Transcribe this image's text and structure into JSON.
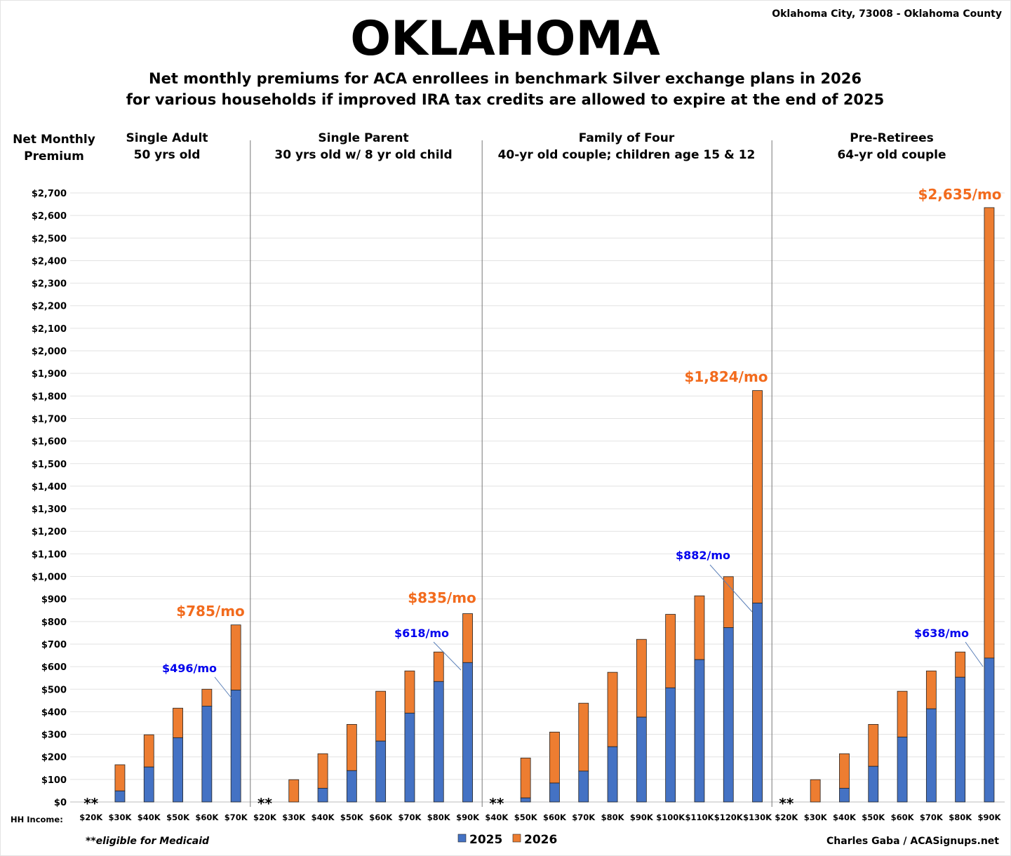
{
  "header": {
    "title": "OKLAHOMA",
    "location": "Oklahoma City, 73008 - Oklahoma County",
    "subtitle_line1": "Net monthly premiums for ACA enrollees in benchmark Silver exchange plans in 2026",
    "subtitle_line2": "for various households if improved IRA tax credits are allowed to expire at the end of 2025"
  },
  "footer": {
    "medicaid_note": "**eligible for Medicaid",
    "credit": "Charles Gaba / ACASignups.net"
  },
  "chart_data": {
    "type": "bar",
    "stacked": true,
    "ylabel_line1": "Net Monthly",
    "ylabel_line2": "Premium",
    "xlabel": "HH Income:",
    "ylim": [
      0,
      2700
    ],
    "ytick_step": 100,
    "grid": true,
    "legend_position": "bottom",
    "colors": {
      "2025": "#4472C4",
      "2026": "#ED7D31",
      "annotation_2025": "#0000EE",
      "annotation_2026": "#F26B1D"
    },
    "medicaid_marker": "**",
    "legend": [
      "2025",
      "2026"
    ],
    "panels": [
      {
        "title_line1": "Single Adult",
        "title_line2": "50 yrs old",
        "categories": [
          "$20K",
          "$30K",
          "$40K",
          "$50K",
          "$60K",
          "$70K"
        ],
        "values_2025": [
          null,
          49,
          155,
          285,
          425,
          496
        ],
        "values_2026": [
          null,
          165,
          298,
          416,
          500,
          785
        ],
        "annotation_2025": "$496/mo",
        "annotation_2026": "$785/mo"
      },
      {
        "title_line1": "Single Parent",
        "title_line2": "30 yrs old w/ 8 yr old child",
        "categories": [
          "$20K",
          "$30K",
          "$40K",
          "$50K",
          "$60K",
          "$70K",
          "$80K",
          "$90K"
        ],
        "values_2025": [
          null,
          0,
          61,
          139,
          270,
          394,
          534,
          618
        ],
        "values_2026": [
          null,
          99,
          214,
          344,
          491,
          581,
          665,
          835
        ],
        "annotation_2025": "$618/mo",
        "annotation_2026": "$835/mo"
      },
      {
        "title_line1": "Family of Four",
        "title_line2": "40-yr old couple; children age 15 & 12",
        "categories": [
          "$40K",
          "$50K",
          "$60K",
          "$70K",
          "$80K",
          "$90K",
          "$100K",
          "$110K",
          "$120K",
          "$130K"
        ],
        "values_2025": [
          null,
          18,
          84,
          137,
          245,
          376,
          506,
          631,
          773,
          882
        ],
        "values_2026": [
          null,
          195,
          310,
          438,
          575,
          721,
          832,
          914,
          999,
          1824
        ],
        "annotation_2025": "$882/mo",
        "annotation_2026": "$1,824/mo"
      },
      {
        "title_line1": "Pre-Retirees",
        "title_line2": "64-yr old couple",
        "categories": [
          "$20K",
          "$30K",
          "$40K",
          "$50K",
          "$60K",
          "$70K",
          "$80K",
          "$90K"
        ],
        "values_2025": [
          null,
          0,
          61,
          158,
          288,
          413,
          553,
          638
        ],
        "values_2026": [
          null,
          99,
          214,
          344,
          491,
          581,
          665,
          2635
        ],
        "annotation_2025": "$638/mo",
        "annotation_2026": "$2,635/mo"
      }
    ]
  }
}
